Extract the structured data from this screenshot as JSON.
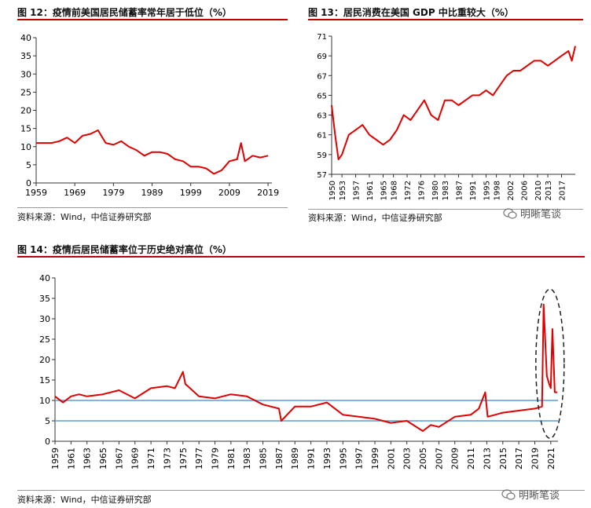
{
  "titles": {
    "fig12": "图 12：疫情前美国居民储蓄率常年居于低位（%）",
    "fig13": "图 13：居民消费在美国 GDP 中比重较大（%）",
    "fig14": "图 14：疫情后居民储蓄率位于历史绝对高位（%）"
  },
  "sources": {
    "fig12": "资料来源：Wind，中信证券研究部",
    "fig13": "资料来源：Wind，中信证券研究部",
    "fig14": "资料来源：Wind，中信证券研究部"
  },
  "watermark": "明晰笔谈",
  "colors": {
    "series": "#e00000",
    "ref": "#5b9bd5",
    "rule": "#c00000"
  },
  "chart_data": [
    {
      "type": "line",
      "title": "图 12：疫情前美国居民储蓄率常年居于低位（%）",
      "ylim": [
        0,
        40
      ],
      "yticks": [
        0,
        5,
        10,
        15,
        20,
        25,
        30,
        35,
        40
      ],
      "xlim": [
        1959,
        2020
      ],
      "xticks": [
        "1959",
        "1969",
        "1979",
        "1989",
        "1999",
        "2009",
        "2019"
      ],
      "series": [
        {
          "x": [
            1959,
            1961,
            1963,
            1965,
            1967,
            1969,
            1971,
            1973,
            1975,
            1977,
            1979,
            1981,
            1983,
            1985,
            1987,
            1989,
            1991,
            1993,
            1995,
            1997,
            1999,
            2001,
            2003,
            2005,
            2007,
            2009,
            2011,
            2012,
            2013,
            2015,
            2017,
            2019
          ],
          "y": [
            11,
            11,
            11,
            11.5,
            12.5,
            11,
            13,
            13.5,
            14.5,
            11,
            10.5,
            11.5,
            10,
            9,
            7.5,
            8.5,
            8.5,
            8,
            6.5,
            6,
            4.5,
            4.5,
            4,
            2.5,
            3.5,
            6,
            6.5,
            11,
            6,
            7.5,
            7,
            7.5
          ]
        }
      ]
    },
    {
      "type": "line",
      "title": "图 13：居民消费在美国 GDP 中比重较大（%）",
      "ylim": [
        57,
        71
      ],
      "yticks": [
        57,
        59,
        61,
        63,
        65,
        67,
        69,
        71
      ],
      "xlim": [
        1950,
        2021
      ],
      "xticks": [
        "1950",
        "1953",
        "1957",
        "1961",
        "1965",
        "1968",
        "1972",
        "1976",
        "1980",
        "1983",
        "1987",
        "1991",
        "1995",
        "1998",
        "2002",
        "2006",
        "2010",
        "2013",
        "2017"
      ],
      "series": [
        {
          "x": [
            1950,
            1951,
            1952,
            1953,
            1955,
            1957,
            1959,
            1961,
            1963,
            1965,
            1967,
            1969,
            1971,
            1973,
            1975,
            1977,
            1979,
            1981,
            1983,
            1985,
            1987,
            1989,
            1991,
            1993,
            1995,
            1997,
            1999,
            2001,
            2003,
            2005,
            2007,
            2009,
            2011,
            2013,
            2015,
            2017,
            2019,
            2020,
            2021
          ],
          "y": [
            64,
            61,
            58.5,
            59,
            61,
            61.5,
            62,
            61,
            60.5,
            60,
            60.5,
            61.5,
            63,
            62.5,
            63.5,
            64.5,
            63,
            62.5,
            64.5,
            64.5,
            64,
            64.5,
            65,
            65,
            65.5,
            65,
            66,
            67,
            67.5,
            67.5,
            68,
            68.5,
            68.5,
            68,
            68.5,
            69,
            69.5,
            68.5,
            70
          ]
        }
      ]
    },
    {
      "type": "line",
      "title": "图 14：疫情后居民储蓄率位于历史绝对高位（%）",
      "ylim": [
        0,
        40
      ],
      "yticks": [
        0,
        5,
        10,
        15,
        20,
        25,
        30,
        35,
        40
      ],
      "xlim": [
        1959,
        2021.9
      ],
      "xticks": [
        "1959",
        "1961",
        "1963",
        "1965",
        "1967",
        "1969",
        "1971",
        "1973",
        "1975",
        "1977",
        "1979",
        "1981",
        "1983",
        "1985",
        "1987",
        "1989",
        "1991",
        "1993",
        "1995",
        "1997",
        "1999",
        "2001",
        "2003",
        "2005",
        "2007",
        "2009",
        "2011",
        "2013",
        "2015",
        "2017",
        "2019",
        "2021"
      ],
      "ref_lines": [
        10,
        5
      ],
      "series": [
        {
          "x": [
            1959,
            1960,
            1961,
            1962,
            1963,
            1965,
            1967,
            1969,
            1971,
            1973,
            1974,
            1975,
            1975.3,
            1975.6,
            1977,
            1979,
            1981,
            1983,
            1985,
            1987,
            1987.3,
            1989,
            1991,
            1993,
            1995,
            1997,
            1999,
            2001,
            2003,
            2005,
            2006,
            2007,
            2009,
            2011,
            2012,
            2012.8,
            2013.1,
            2015,
            2017,
            2019,
            2019.9,
            2020.1,
            2020.3,
            2020.5,
            2020.8,
            2021.0,
            2021.2,
            2021.5,
            2021.8
          ],
          "y": [
            11,
            9.5,
            11,
            11.5,
            11,
            11.5,
            12.5,
            10.5,
            13,
            13.5,
            13,
            17,
            14,
            13.5,
            11,
            10.5,
            11.5,
            11,
            9,
            8,
            5,
            8.5,
            8.5,
            9.5,
            6.5,
            6,
            5.5,
            4.5,
            5,
            2.5,
            4,
            3.5,
            6,
            6.5,
            8,
            12,
            6,
            7,
            7.5,
            8,
            8.5,
            33.5,
            25,
            16,
            14,
            13,
            27.5,
            12,
            12
          ]
        }
      ]
    }
  ]
}
